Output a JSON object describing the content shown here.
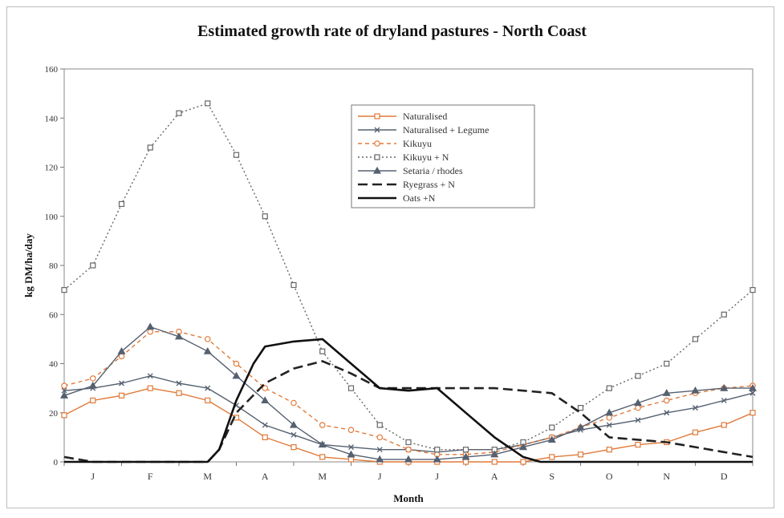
{
  "chart_data": {
    "type": "line",
    "title": "Estimated growth rate of dryland pastures - North Coast",
    "xlabel": "Month",
    "ylabel": "kg DM/ha/day",
    "ylim": [
      0,
      160
    ],
    "yticks": [
      0,
      20,
      40,
      60,
      80,
      100,
      120,
      140,
      160
    ],
    "xlim": [
      0.5,
      12.5
    ],
    "month_labels": [
      "J",
      "F",
      "M",
      "A",
      "M",
      "J",
      "J",
      "A",
      "S",
      "O",
      "N",
      "D"
    ],
    "grid": false,
    "legend_position": "top-center",
    "series": [
      {
        "name": "Naturalised",
        "color": "#e07a3a",
        "dash": "",
        "marker": "square",
        "x": [
          0.5,
          1.0,
          1.5,
          2.0,
          2.5,
          3.0,
          3.5,
          4.0,
          4.5,
          5.0,
          5.5,
          6.0,
          6.5,
          7.0,
          7.5,
          8.0,
          8.5,
          9.0,
          9.5,
          10.0,
          10.5,
          11.0,
          11.5,
          12.0,
          12.5
        ],
        "y": [
          19,
          25,
          27,
          30,
          28,
          25,
          18,
          10,
          6,
          2,
          1,
          0,
          0,
          0,
          0,
          0,
          0,
          2,
          3,
          5,
          7,
          8,
          12,
          15,
          20
        ]
      },
      {
        "name": "Naturalised + Legume",
        "color": "#556070",
        "dash": "",
        "marker": "x",
        "x": [
          0.5,
          1.0,
          1.5,
          2.0,
          2.5,
          3.0,
          3.5,
          4.0,
          4.5,
          5.0,
          5.5,
          6.0,
          6.5,
          7.0,
          7.5,
          8.0,
          8.5,
          9.0,
          9.5,
          10.0,
          10.5,
          11.0,
          11.5,
          12.0,
          12.5
        ],
        "y": [
          29,
          30,
          32,
          35,
          32,
          30,
          23,
          15,
          11,
          7,
          6,
          5,
          5,
          4,
          5,
          5,
          7,
          10,
          13,
          15,
          17,
          20,
          22,
          25,
          28
        ]
      },
      {
        "name": "Kikuyu",
        "color": "#e07a3a",
        "dash": "5,4",
        "marker": "circle",
        "x": [
          0.5,
          1.0,
          1.5,
          2.0,
          2.5,
          3.0,
          3.5,
          4.0,
          4.5,
          5.0,
          5.5,
          6.0,
          6.5,
          7.0,
          7.5,
          8.0,
          8.5,
          9.0,
          9.5,
          10.0,
          10.5,
          11.0,
          11.5,
          12.0,
          12.5
        ],
        "y": [
          31,
          34,
          43,
          53,
          53,
          50,
          40,
          30,
          24,
          15,
          13,
          10,
          5,
          3,
          3,
          4,
          7,
          10,
          14,
          18,
          22,
          25,
          28,
          30,
          31
        ]
      },
      {
        "name": "Kikuyu + N",
        "color": "#666666",
        "dash": "2,3",
        "marker": "square",
        "x": [
          0.5,
          1.0,
          1.5,
          2.0,
          2.5,
          3.0,
          3.5,
          4.0,
          4.5,
          5.0,
          5.5,
          6.0,
          6.5,
          7.0,
          7.5,
          8.0,
          8.5,
          9.0,
          9.5,
          10.0,
          10.5,
          11.0,
          11.5,
          12.0,
          12.5
        ],
        "y": [
          70,
          80,
          105,
          128,
          142,
          146,
          125,
          100,
          72,
          45,
          30,
          15,
          8,
          5,
          5,
          5,
          8,
          14,
          22,
          30,
          35,
          40,
          50,
          60,
          70
        ]
      },
      {
        "name": "Setaria / rhodes",
        "color": "#556070",
        "dash": "",
        "marker": "triangle",
        "x": [
          0.5,
          1.0,
          1.5,
          2.0,
          2.5,
          3.0,
          3.5,
          4.0,
          4.5,
          5.0,
          5.5,
          6.0,
          6.5,
          7.0,
          7.5,
          8.0,
          8.5,
          9.0,
          9.5,
          10.0,
          10.5,
          11.0,
          11.5,
          12.0,
          12.5
        ],
        "y": [
          27,
          31,
          45,
          55,
          51,
          45,
          35,
          25,
          15,
          7,
          3,
          1,
          1,
          1,
          2,
          3,
          6,
          9,
          14,
          20,
          24,
          28,
          29,
          30,
          30
        ]
      },
      {
        "name": "Ryegrass + N",
        "color": "#222222",
        "dash": "12,6",
        "marker": "none",
        "x": [
          0.5,
          1.0,
          2.0,
          3.0,
          3.2,
          3.5,
          4.0,
          4.5,
          5.0,
          5.5,
          6.0,
          7.0,
          7.5,
          8.0,
          8.5,
          9.0,
          9.5,
          10.0,
          10.5,
          11.0,
          11.5,
          12.0,
          12.5
        ],
        "y": [
          2,
          0,
          0,
          0,
          5,
          20,
          32,
          38,
          41,
          36,
          30,
          30,
          30,
          30,
          29,
          28,
          20,
          10,
          9,
          8,
          6,
          4,
          2
        ]
      },
      {
        "name": "Oats +N",
        "color": "#111111",
        "dash": "",
        "marker": "none",
        "x": [
          0.5,
          1.0,
          2.0,
          3.0,
          3.2,
          3.5,
          3.8,
          4.0,
          4.5,
          5.0,
          5.5,
          6.0,
          6.5,
          7.0,
          7.5,
          8.0,
          8.5,
          8.8,
          9.0,
          10.0,
          11.0,
          12.0,
          12.5
        ],
        "y": [
          0,
          0,
          0,
          0,
          5,
          25,
          40,
          47,
          49,
          50,
          40,
          30,
          29,
          30,
          20,
          10,
          2,
          0,
          0,
          0,
          0,
          0,
          0
        ]
      }
    ]
  }
}
